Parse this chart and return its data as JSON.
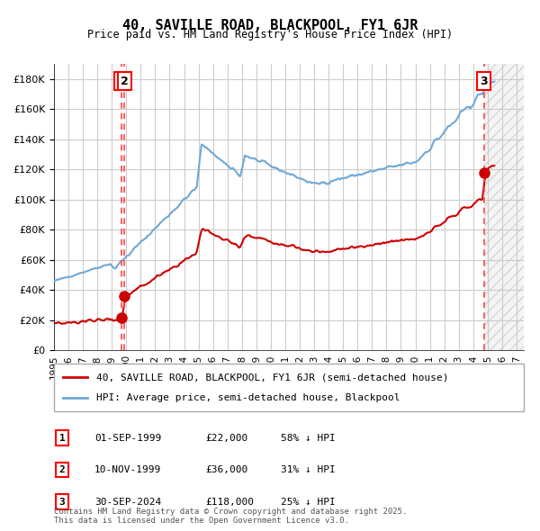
{
  "title": "40, SAVILLE ROAD, BLACKPOOL, FY1 6JR",
  "subtitle": "Price paid vs. HM Land Registry's House Price Index (HPI)",
  "legend_line1": "40, SAVILLE ROAD, BLACKPOOL, FY1 6JR (semi-detached house)",
  "legend_line2": "HPI: Average price, semi-detached house, Blackpool",
  "sale_points": [
    {
      "label": "1",
      "date_num": 1999.667,
      "price": 22000
    },
    {
      "label": "2",
      "date_num": 1999.861,
      "price": 36000
    },
    {
      "label": "3",
      "date_num": 2024.747,
      "price": 118000
    }
  ],
  "table_rows": [
    [
      "1",
      "01-SEP-1999",
      "£22,000",
      "58% ↓ HPI"
    ],
    [
      "2",
      "10-NOV-1999",
      "£36,000",
      "31% ↓ HPI"
    ],
    [
      "3",
      "30-SEP-2024",
      "£118,000",
      "25% ↓ HPI"
    ]
  ],
  "footnote": "Contains HM Land Registry data © Crown copyright and database right 2025.\nThis data is licensed under the Open Government Licence v3.0.",
  "hpi_color": "#6fa8d6",
  "price_color": "#cc0000",
  "vline_color": "#ff4444",
  "dot_color": "#cc0000",
  "background_color": "#ffffff",
  "plot_bg_color": "#ffffff",
  "hatch_color": "#e0e0e0",
  "grid_color": "#cccccc",
  "ylim": [
    0,
    190000
  ],
  "xlim_start": 1995.0,
  "xlim_end": 2027.5,
  "yticks": [
    0,
    20000,
    40000,
    60000,
    80000,
    100000,
    120000,
    140000,
    160000,
    180000
  ],
  "xtick_years": [
    1995,
    1996,
    1997,
    1998,
    1999,
    2000,
    2001,
    2002,
    2003,
    2004,
    2005,
    2006,
    2007,
    2008,
    2009,
    2010,
    2011,
    2012,
    2013,
    2014,
    2015,
    2016,
    2017,
    2018,
    2019,
    2020,
    2021,
    2022,
    2023,
    2024,
    2025,
    2026,
    2027
  ]
}
